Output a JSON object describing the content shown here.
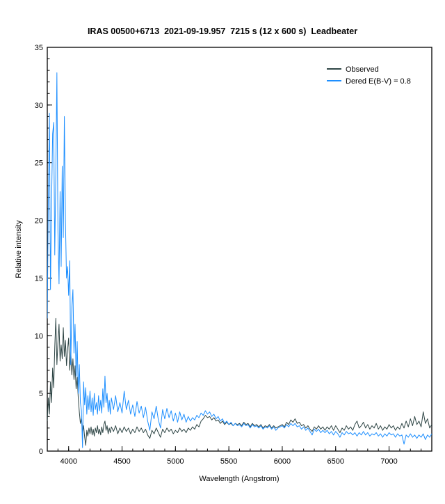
{
  "window": {
    "background": "#ffffff"
  },
  "header": {
    "title": "IRAS 00500+6713  2021-09-19.957  7215 s (12 x 600 s)  Leadbeater"
  },
  "chart_data": {
    "type": "line",
    "title": "IRAS 00500+6713  2021-09-19.957  7215 s (12 x 600 s)  Leadbeater",
    "xlabel": "Wavelength (Angstrom)",
    "ylabel": "Relative intensity",
    "xlim": [
      3800,
      7400
    ],
    "ylim": [
      0,
      35
    ],
    "x_major_ticks": [
      4000,
      4500,
      5000,
      5500,
      6000,
      6500,
      7000
    ],
    "y_major_ticks": [
      0,
      5,
      10,
      15,
      20,
      25,
      30,
      35
    ],
    "x_minor_step": 100,
    "y_minor_step": 1,
    "grid": false,
    "legend_position": "top-right",
    "axis_color": "#000000",
    "x_segments": [
      {
        "start": 3800,
        "step": 10,
        "count": 61
      },
      {
        "start": 4420,
        "step": 20,
        "count": 150
      }
    ],
    "series": [
      {
        "name": "Observed",
        "color": "#2e4545",
        "values": [
          2.6,
          4.6,
          3.2,
          6.0,
          4.2,
          7.2,
          5.5,
          9.0,
          11.5,
          7.5,
          9.5,
          11.0,
          7.8,
          9.2,
          8.0,
          10.7,
          8.2,
          9.6,
          7.4,
          8.8,
          9.8,
          7.0,
          8.6,
          6.6,
          8.0,
          6.2,
          7.4,
          5.4,
          6.4,
          4.6,
          3.4,
          2.4,
          2.8,
          1.6,
          2.2,
          1.2,
          0.5,
          1.8,
          1.3,
          2.0,
          1.5,
          2.1,
          1.4,
          1.9,
          1.3,
          2.0,
          1.6,
          2.2,
          1.5,
          1.9,
          1.4,
          2.1,
          1.6,
          2.3,
          2.6,
          1.8,
          2.2,
          1.5,
          2.0,
          1.6,
          2.1,
          1.7,
          2.2,
          1.5,
          2.0,
          1.6,
          2.1,
          1.7,
          2.0,
          1.5,
          1.9,
          1.6,
          2.1,
          1.7,
          2.0,
          1.6,
          1.9,
          1.4,
          1.1,
          1.8,
          1.5,
          2.0,
          1.6,
          1.2,
          1.9,
          1.6,
          2.0,
          1.7,
          1.9,
          1.5,
          1.8,
          1.6,
          2.0,
          1.7,
          1.9,
          1.6,
          2.0,
          1.8,
          2.1,
          1.9,
          2.3,
          2.1,
          2.6,
          2.8,
          3.1,
          2.9,
          3.0,
          2.7,
          2.9,
          2.6,
          2.7,
          2.4,
          2.6,
          2.3,
          2.5,
          2.3,
          2.4,
          2.2,
          2.4,
          2.3,
          2.4,
          2.2,
          2.5,
          2.3,
          2.4,
          2.1,
          2.4,
          2.2,
          2.3,
          2.1,
          2.3,
          2.0,
          2.2,
          2.1,
          2.3,
          2.0,
          2.2,
          2.0,
          2.1,
          2.2,
          2.3,
          2.1,
          2.5,
          2.3,
          2.7,
          2.5,
          2.8,
          2.4,
          2.5,
          2.2,
          2.3,
          2.0,
          2.2,
          1.9,
          1.7,
          2.1,
          1.9,
          2.2,
          1.9,
          2.1,
          1.8,
          2.1,
          1.9,
          2.2,
          1.8,
          2.2,
          1.9,
          1.6,
          2.0,
          1.8,
          2.2,
          1.9,
          2.1,
          1.8,
          2.3,
          2.6,
          2.0,
          2.2,
          2.5,
          2.0,
          2.3,
          1.9,
          2.2,
          2.0,
          2.4,
          1.9,
          2.2,
          1.8,
          2.1,
          1.9,
          2.3,
          2.0,
          2.2,
          1.8,
          2.1,
          1.9,
          2.4,
          2.0,
          2.6,
          2.1,
          2.8,
          2.2,
          3.0,
          2.3,
          2.6,
          2.1,
          3.4,
          2.4,
          2.8,
          2.0,
          2.3
        ]
      },
      {
        "name": "Dered E(B-V) = 0.8",
        "color": "#1e8fff",
        "values": [
          11.5,
          22.0,
          29.3,
          14.0,
          21.5,
          27.5,
          28.5,
          17.0,
          24.0,
          32.8,
          19.0,
          14.5,
          22.5,
          16.0,
          24.7,
          18.5,
          29.0,
          20.0,
          15.0,
          16.0,
          13.5,
          16.5,
          7.5,
          12.5,
          14.0,
          8.5,
          11.0,
          6.5,
          9.5,
          5.0,
          7.5,
          4.2,
          3.5,
          0.3,
          6.0,
          4.0,
          5.5,
          3.2,
          4.8,
          3.6,
          5.2,
          3.4,
          4.6,
          3.1,
          5.0,
          3.6,
          4.2,
          3.2,
          4.8,
          3.5,
          4.4,
          3.3,
          5.4,
          3.8,
          6.5,
          4.2,
          5.0,
          3.4,
          4.4,
          3.2,
          4.6,
          3.6,
          4.8,
          3.4,
          4.2,
          3.3,
          5.2,
          3.6,
          4.4,
          3.2,
          4.0,
          3.0,
          4.3,
          3.3,
          3.9,
          2.9,
          3.8,
          2.6,
          1.8,
          3.4,
          2.8,
          3.9,
          2.7,
          2.0,
          3.6,
          2.8,
          3.7,
          2.9,
          3.5,
          2.6,
          3.3,
          2.5,
          3.4,
          2.7,
          3.2,
          2.5,
          3.0,
          2.6,
          2.9,
          2.7,
          3.1,
          2.9,
          3.3,
          3.1,
          3.5,
          3.2,
          3.4,
          3.0,
          3.2,
          2.8,
          3.0,
          2.6,
          2.8,
          2.4,
          2.6,
          2.3,
          2.5,
          2.2,
          2.4,
          2.2,
          2.3,
          2.1,
          2.4,
          2.2,
          2.3,
          2.0,
          2.3,
          2.1,
          2.2,
          2.0,
          2.2,
          1.9,
          2.1,
          2.0,
          2.2,
          1.9,
          2.1,
          1.8,
          2.0,
          2.1,
          2.2,
          2.0,
          2.3,
          2.1,
          2.4,
          2.2,
          2.4,
          2.1,
          2.2,
          1.9,
          2.1,
          1.8,
          2.0,
          1.7,
          1.4,
          1.9,
          1.7,
          1.9,
          1.6,
          1.8,
          1.6,
          1.8,
          1.5,
          1.7,
          1.4,
          1.7,
          1.5,
          1.2,
          1.6,
          1.4,
          1.7,
          1.5,
          1.6,
          1.4,
          1.6,
          1.3,
          1.6,
          1.4,
          1.7,
          1.4,
          1.6,
          1.3,
          1.5,
          1.4,
          1.6,
          1.3,
          1.5,
          1.2,
          1.5,
          1.3,
          1.6,
          1.4,
          1.5,
          1.2,
          1.5,
          1.3,
          1.4,
          0.6,
          1.4,
          1.2,
          1.5,
          1.2,
          1.4,
          1.1,
          1.4,
          1.2,
          1.5,
          1.0,
          1.4,
          1.2,
          1.5
        ]
      }
    ]
  }
}
